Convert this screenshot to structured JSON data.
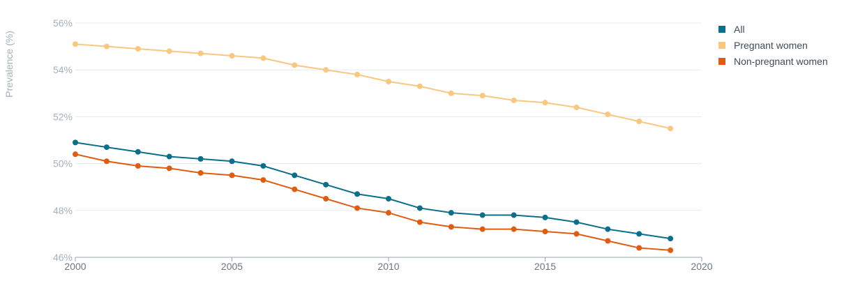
{
  "chart_data": {
    "type": "line",
    "ylabel": "Prevalence (%)",
    "xlabel": "",
    "xlim": [
      2000,
      2020
    ],
    "ylim": [
      46,
      56
    ],
    "x_ticks": [
      "2000",
      "2005",
      "2010",
      "2015",
      "2020"
    ],
    "y_ticks": [
      "46%",
      "48%",
      "50%",
      "52%",
      "54%",
      "56%"
    ],
    "grid": "horizontal",
    "legend_position": "top-right",
    "x": [
      2000,
      2001,
      2002,
      2003,
      2004,
      2005,
      2006,
      2007,
      2008,
      2009,
      2010,
      2011,
      2012,
      2013,
      2014,
      2015,
      2016,
      2017,
      2018,
      2019
    ],
    "series": [
      {
        "name": "All",
        "color": "#0b6e8a",
        "values": [
          50.9,
          50.7,
          50.5,
          50.3,
          50.2,
          50.1,
          49.9,
          49.5,
          49.1,
          48.7,
          48.5,
          48.1,
          47.9,
          47.8,
          47.8,
          47.7,
          47.5,
          47.2,
          47.0,
          46.8
        ]
      },
      {
        "name": "Pregnant women",
        "color": "#f9c77f",
        "values": [
          55.1,
          55.0,
          54.9,
          54.8,
          54.7,
          54.6,
          54.5,
          54.2,
          54.0,
          53.8,
          53.5,
          53.3,
          53.0,
          52.9,
          52.7,
          52.6,
          52.4,
          52.1,
          51.8,
          51.5
        ]
      },
      {
        "name": "Non-pregnant women",
        "color": "#e05c10",
        "values": [
          50.4,
          50.1,
          49.9,
          49.8,
          49.6,
          49.5,
          49.3,
          48.9,
          48.5,
          48.1,
          47.9,
          47.5,
          47.3,
          47.2,
          47.2,
          47.1,
          47.0,
          46.7,
          46.4,
          46.3
        ]
      }
    ]
  }
}
